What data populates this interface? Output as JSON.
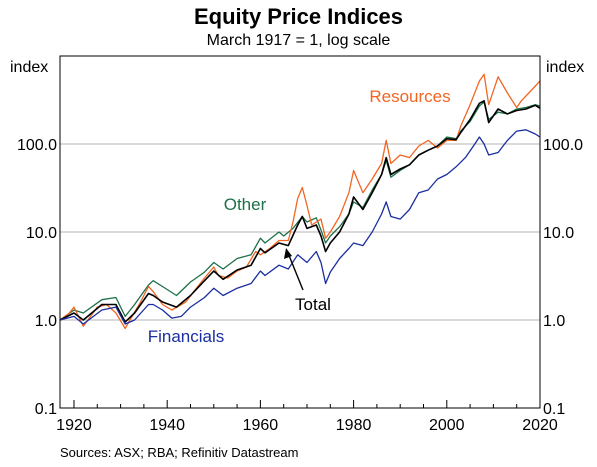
{
  "title": "Equity Price Indices",
  "subtitle": "March 1917 = 1, log scale",
  "sources": "Sources:   ASX; RBA; Refinitiv Datastream",
  "chart_data": {
    "type": "line",
    "title": "Equity Price Indices",
    "subtitle": "March 1917 = 1, log scale",
    "y_scale": "log",
    "ylim": [
      0.1,
      1000
    ],
    "xlim": [
      1917,
      2020
    ],
    "y_unit_left": "index",
    "y_unit_right": "index",
    "y_ticks": [
      {
        "value": 0.1,
        "label": "0.1"
      },
      {
        "value": 1,
        "label": "1.0"
      },
      {
        "value": 10,
        "label": "10.0"
      },
      {
        "value": 100,
        "label": "100.0"
      }
    ],
    "x_ticks": [
      {
        "value": 1920,
        "label": "1920"
      },
      {
        "value": 1940,
        "label": "1940"
      },
      {
        "value": 1960,
        "label": "1960"
      },
      {
        "value": 1980,
        "label": "1980"
      },
      {
        "value": 2000,
        "label": "2000"
      },
      {
        "value": 2020,
        "label": "2020"
      }
    ],
    "grid": "horizontal",
    "series": [
      {
        "name": "Other",
        "color": "#1e7048",
        "points": [
          [
            1917,
            1.0
          ],
          [
            1920,
            1.3
          ],
          [
            1922,
            1.2
          ],
          [
            1926,
            1.7
          ],
          [
            1929,
            1.8
          ],
          [
            1931,
            1.1
          ],
          [
            1933,
            1.5
          ],
          [
            1936,
            2.5
          ],
          [
            1937,
            2.8
          ],
          [
            1939,
            2.4
          ],
          [
            1942,
            1.9
          ],
          [
            1945,
            2.7
          ],
          [
            1948,
            3.5
          ],
          [
            1950,
            4.5
          ],
          [
            1952,
            3.8
          ],
          [
            1955,
            5.0
          ],
          [
            1958,
            5.5
          ],
          [
            1960,
            8.5
          ],
          [
            1961,
            7.5
          ],
          [
            1964,
            10.0
          ],
          [
            1965,
            9.0
          ],
          [
            1967,
            11.0
          ],
          [
            1969,
            15.0
          ],
          [
            1970,
            13.0
          ],
          [
            1972,
            14.5
          ],
          [
            1973,
            10.5
          ],
          [
            1974,
            7.5
          ],
          [
            1975,
            9.0
          ],
          [
            1977,
            11.5
          ],
          [
            1979,
            16.0
          ],
          [
            1980,
            22.0
          ],
          [
            1982,
            19.0
          ],
          [
            1984,
            30.0
          ],
          [
            1986,
            45.0
          ],
          [
            1987,
            65.0
          ],
          [
            1988,
            42.0
          ],
          [
            1990,
            50.0
          ],
          [
            1992,
            58.0
          ],
          [
            1994,
            75.0
          ],
          [
            1996,
            85.0
          ],
          [
            1998,
            95.0
          ],
          [
            2000,
            120.0
          ],
          [
            2002,
            115.0
          ],
          [
            2003,
            140.0
          ],
          [
            2005,
            180.0
          ],
          [
            2007,
            270.0
          ],
          [
            2008,
            300.0
          ],
          [
            2009,
            190.0
          ],
          [
            2011,
            230.0
          ],
          [
            2013,
            220.0
          ],
          [
            2015,
            250.0
          ],
          [
            2017,
            260.0
          ],
          [
            2019,
            280.0
          ],
          [
            2020,
            270.0
          ]
        ]
      },
      {
        "name": "Resources",
        "color": "#f26522",
        "points": [
          [
            1917,
            1.0
          ],
          [
            1919,
            1.2
          ],
          [
            1920,
            1.4
          ],
          [
            1922,
            0.85
          ],
          [
            1925,
            1.4
          ],
          [
            1927,
            1.5
          ],
          [
            1929,
            1.2
          ],
          [
            1931,
            0.8
          ],
          [
            1932,
            1.0
          ],
          [
            1934,
            1.5
          ],
          [
            1936,
            2.4
          ],
          [
            1937,
            2.1
          ],
          [
            1939,
            1.5
          ],
          [
            1941,
            1.3
          ],
          [
            1944,
            1.6
          ],
          [
            1946,
            2.2
          ],
          [
            1948,
            3.0
          ],
          [
            1950,
            4.0
          ],
          [
            1951,
            3.2
          ],
          [
            1953,
            3.0
          ],
          [
            1955,
            3.6
          ],
          [
            1957,
            4.0
          ],
          [
            1959,
            6.0
          ],
          [
            1960,
            5.5
          ],
          [
            1962,
            6.5
          ],
          [
            1964,
            8.0
          ],
          [
            1966,
            8.0
          ],
          [
            1967,
            13.0
          ],
          [
            1968,
            24.0
          ],
          [
            1969,
            32.0
          ],
          [
            1970,
            20.0
          ],
          [
            1971,
            12.0
          ],
          [
            1973,
            14.0
          ],
          [
            1974,
            8.5
          ],
          [
            1975,
            10.0
          ],
          [
            1977,
            15.0
          ],
          [
            1979,
            28.0
          ],
          [
            1980,
            50.0
          ],
          [
            1982,
            28.0
          ],
          [
            1984,
            40.0
          ],
          [
            1986,
            60.0
          ],
          [
            1987,
            110.0
          ],
          [
            1988,
            60.0
          ],
          [
            1990,
            75.0
          ],
          [
            1992,
            70.0
          ],
          [
            1994,
            95.0
          ],
          [
            1996,
            110.0
          ],
          [
            1998,
            90.0
          ],
          [
            2000,
            110.0
          ],
          [
            2002,
            110.0
          ],
          [
            2003,
            160.0
          ],
          [
            2005,
            280.0
          ],
          [
            2007,
            520.0
          ],
          [
            2008,
            620.0
          ],
          [
            2009,
            280.0
          ],
          [
            2011,
            580.0
          ],
          [
            2013,
            380.0
          ],
          [
            2015,
            260.0
          ],
          [
            2016,
            310.0
          ],
          [
            2018,
            400.0
          ],
          [
            2020,
            520.0
          ]
        ]
      },
      {
        "name": "Total",
        "color": "#000000",
        "points": [
          [
            1917,
            1.0
          ],
          [
            1920,
            1.2
          ],
          [
            1922,
            1.0
          ],
          [
            1926,
            1.5
          ],
          [
            1929,
            1.5
          ],
          [
            1931,
            0.95
          ],
          [
            1933,
            1.2
          ],
          [
            1936,
            2.0
          ],
          [
            1937,
            1.9
          ],
          [
            1939,
            1.6
          ],
          [
            1942,
            1.4
          ],
          [
            1945,
            1.9
          ],
          [
            1948,
            2.8
          ],
          [
            1950,
            3.6
          ],
          [
            1952,
            2.9
          ],
          [
            1955,
            3.7
          ],
          [
            1958,
            4.2
          ],
          [
            1960,
            6.5
          ],
          [
            1961,
            5.8
          ],
          [
            1964,
            7.5
          ],
          [
            1966,
            7.0
          ],
          [
            1968,
            12.0
          ],
          [
            1969,
            15.0
          ],
          [
            1970,
            11.0
          ],
          [
            1972,
            12.0
          ],
          [
            1973,
            9.0
          ],
          [
            1974,
            6.0
          ],
          [
            1975,
            7.5
          ],
          [
            1977,
            10.0
          ],
          [
            1979,
            16.0
          ],
          [
            1980,
            25.0
          ],
          [
            1982,
            18.0
          ],
          [
            1984,
            28.0
          ],
          [
            1986,
            45.0
          ],
          [
            1987,
            70.0
          ],
          [
            1988,
            45.0
          ],
          [
            1990,
            52.0
          ],
          [
            1992,
            58.0
          ],
          [
            1994,
            75.0
          ],
          [
            1996,
            85.0
          ],
          [
            1998,
            95.0
          ],
          [
            2000,
            115.0
          ],
          [
            2002,
            112.0
          ],
          [
            2003,
            135.0
          ],
          [
            2005,
            190.0
          ],
          [
            2007,
            290.0
          ],
          [
            2008,
            310.0
          ],
          [
            2009,
            175.0
          ],
          [
            2011,
            250.0
          ],
          [
            2013,
            220.0
          ],
          [
            2015,
            240.0
          ],
          [
            2017,
            250.0
          ],
          [
            2019,
            275.0
          ],
          [
            2020,
            255.0
          ]
        ]
      },
      {
        "name": "Financials",
        "color": "#1a2ea0",
        "points": [
          [
            1917,
            1.0
          ],
          [
            1920,
            1.1
          ],
          [
            1922,
            0.9
          ],
          [
            1926,
            1.3
          ],
          [
            1929,
            1.4
          ],
          [
            1931,
            0.9
          ],
          [
            1933,
            1.0
          ],
          [
            1936,
            1.5
          ],
          [
            1937,
            1.5
          ],
          [
            1939,
            1.3
          ],
          [
            1941,
            1.05
          ],
          [
            1943,
            1.1
          ],
          [
            1945,
            1.4
          ],
          [
            1948,
            1.8
          ],
          [
            1950,
            2.3
          ],
          [
            1952,
            1.9
          ],
          [
            1955,
            2.3
          ],
          [
            1958,
            2.6
          ],
          [
            1960,
            3.6
          ],
          [
            1961,
            3.2
          ],
          [
            1964,
            4.2
          ],
          [
            1966,
            3.8
          ],
          [
            1968,
            5.5
          ],
          [
            1970,
            4.5
          ],
          [
            1972,
            6.0
          ],
          [
            1973,
            4.5
          ],
          [
            1974,
            2.6
          ],
          [
            1975,
            3.5
          ],
          [
            1977,
            5.0
          ],
          [
            1979,
            6.5
          ],
          [
            1980,
            7.5
          ],
          [
            1982,
            7.0
          ],
          [
            1984,
            10.0
          ],
          [
            1986,
            16.0
          ],
          [
            1987,
            22.0
          ],
          [
            1988,
            15.0
          ],
          [
            1990,
            14.0
          ],
          [
            1992,
            18.0
          ],
          [
            1994,
            28.0
          ],
          [
            1996,
            30.0
          ],
          [
            1998,
            40.0
          ],
          [
            2000,
            45.0
          ],
          [
            2002,
            55.0
          ],
          [
            2004,
            70.0
          ],
          [
            2006,
            100.0
          ],
          [
            2007,
            120.0
          ],
          [
            2008,
            100.0
          ],
          [
            2009,
            75.0
          ],
          [
            2011,
            80.0
          ],
          [
            2013,
            110.0
          ],
          [
            2015,
            140.0
          ],
          [
            2017,
            145.0
          ],
          [
            2019,
            130.0
          ],
          [
            2020,
            120.0
          ]
        ]
      }
    ],
    "annotations": [
      {
        "text": "Resources",
        "series": "Resources",
        "color": "#f26522"
      },
      {
        "text": "Other",
        "series": "Other",
        "color": "#1e7048"
      },
      {
        "text": "Total",
        "series": "Total",
        "color": "#000000",
        "arrow": true
      },
      {
        "text": "Financials",
        "series": "Financials",
        "color": "#1a2ea0"
      }
    ]
  }
}
